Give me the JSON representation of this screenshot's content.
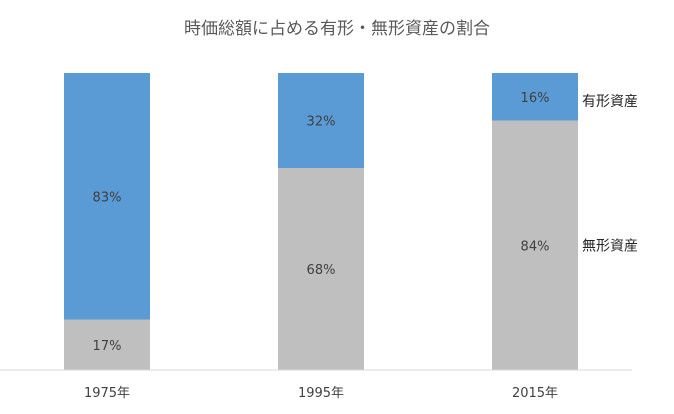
{
  "chart_data": {
    "type": "bar",
    "stacked": true,
    "percent_stacked": true,
    "title": "時価総額に占める有形・無形資産の割合",
    "categories": [
      "1975年",
      "1995年",
      "2015年"
    ],
    "series": [
      {
        "name": "無形資産",
        "values": [
          17,
          68,
          84
        ],
        "labels": [
          "17%",
          "68%",
          "84%"
        ],
        "color": "#bfbfbf"
      },
      {
        "name": "有形資産",
        "values": [
          83,
          32,
          16
        ],
        "labels": [
          "83%",
          "32%",
          "16%"
        ],
        "color": "#5b9bd5"
      }
    ],
    "ylim": [
      0,
      100
    ],
    "grid": false,
    "legend_placement": "right"
  }
}
